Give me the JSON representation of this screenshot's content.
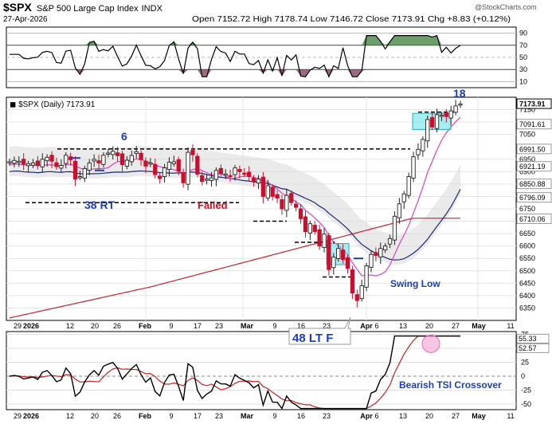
{
  "header": {
    "symbol": "$SPX",
    "name": "S&P 500 Large Cap Index",
    "exchange": "INDX",
    "date": "27-Apr-2026",
    "ohlc": "Open 7152.72   High 7178.74   Low 7146.72   Close 7173.91   Chg +8.83 (+0.12%)",
    "watermark": "@StockCharts.com"
  },
  "rsi": {
    "levels": [
      "90",
      "70",
      "50",
      "30",
      "10"
    ]
  },
  "price": {
    "legend": "$SPX (Daily) 7173.91",
    "ticks": [
      "7150",
      "7100",
      "7050",
      "6950",
      "6900",
      "6850",
      "6800",
      "6750",
      "6700",
      "6650",
      "6600",
      "6550",
      "6500",
      "6450",
      "6400",
      "6350"
    ],
    "tags": [
      {
        "text": "7173.91",
        "bg": "#ffffff",
        "fg": "#000000",
        "border": "#000000"
      },
      {
        "text": "7091.61",
        "bg": "#ffffff",
        "fg": "#000000",
        "border": "#999999"
      },
      {
        "text": "6991.50",
        "bg": "#ffffff",
        "fg": "#000000",
        "border": "#999999"
      },
      {
        "text": "6921.19",
        "bg": "#ffffff",
        "fg": "#000000",
        "border": "#999999"
      },
      {
        "text": "6850.88",
        "bg": "#ffffff",
        "fg": "#000000",
        "border": "#999999"
      },
      {
        "text": "6796.09",
        "bg": "#ffffff",
        "fg": "#000000",
        "border": "#999999"
      },
      {
        "text": "6710.06",
        "bg": "#ffffff",
        "fg": "#000000",
        "border": "#999999"
      }
    ],
    "annotations": {
      "six": "6",
      "eighteen": "18",
      "rt": "38 RT",
      "failed": "Failed",
      "swing": "Swing Low",
      "ltf": "48 LT F"
    }
  },
  "tsi": {
    "ticks": [
      "75",
      "50",
      "25",
      "0",
      "-25",
      "-50"
    ],
    "tag1": "55.33",
    "tag2": "52.57",
    "label": "Bearish TSI Crossover"
  },
  "xaxis": [
    "29",
    "2026",
    "12",
    "20",
    "26",
    "Feb",
    "9",
    "17",
    "23",
    "Mar",
    "9",
    "16",
    "23",
    "Apr",
    "6",
    "13",
    "20",
    "27",
    "May",
    "11"
  ],
  "colors": {
    "up": "#222222",
    "down": "#c8102e",
    "ma_short": "#e040c0",
    "ma_mid": "#1e2a6e",
    "ma_long": "#c8202e",
    "annot": "#1a3cc8",
    "failed": "#c81020"
  },
  "chart_data": {
    "type": "candlestick",
    "title": "$SPX (Daily) 7173.91",
    "ylim": [
      6300,
      7200
    ],
    "y_ticks": [
      7150,
      7100,
      7050,
      6950,
      6900,
      6850,
      6800,
      6750,
      6700,
      6650,
      6600,
      6550,
      6500,
      6450,
      6400,
      6350
    ],
    "x_labels": [
      "29",
      "2026",
      "12",
      "20",
      "26",
      "Feb",
      "9",
      "17",
      "23",
      "Mar",
      "9",
      "16",
      "23",
      "Apr",
      "6",
      "13",
      "20",
      "27",
      "May",
      "11"
    ],
    "close_series": [
      6940,
      6945,
      6942,
      6930,
      6932,
      6935,
      6925,
      6950,
      6958,
      6942,
      6920,
      6925,
      6966,
      6948,
      6870,
      6880,
      6912,
      6935,
      6950,
      6935,
      6966,
      6975,
      6982,
      6964,
      6928,
      6946,
      6965,
      6980,
      6948,
      6922,
      6935,
      6888,
      6872,
      6915,
      6938,
      6940,
      6902,
      6855,
      6978,
      6968,
      6890,
      6860,
      6870,
      6875,
      6905,
      6892,
      6890,
      6880,
      6915,
      6900,
      6890,
      6880,
      6860,
      6870,
      6800,
      6843,
      6800,
      6793,
      6750,
      6804,
      6775,
      6756,
      6710,
      6658,
      6690,
      6658,
      6600,
      6648,
      6505,
      6555,
      6590,
      6545,
      6510,
      6410,
      6380,
      6440,
      6520,
      6566,
      6562,
      6590,
      6600,
      6630,
      6720,
      6770,
      6810,
      6880,
      6960,
      6990,
      7030,
      7110,
      7080,
      7130,
      7128,
      7122,
      7145,
      7165,
      7173
    ],
    "levels": [
      6991.5,
      6921.19,
      6850.88,
      6796.09,
      6710.06,
      7091.61,
      7173.91
    ],
    "rsi_levels": [
      90,
      70,
      50,
      30,
      10
    ],
    "tsi_ylim": [
      -60,
      80
    ]
  }
}
